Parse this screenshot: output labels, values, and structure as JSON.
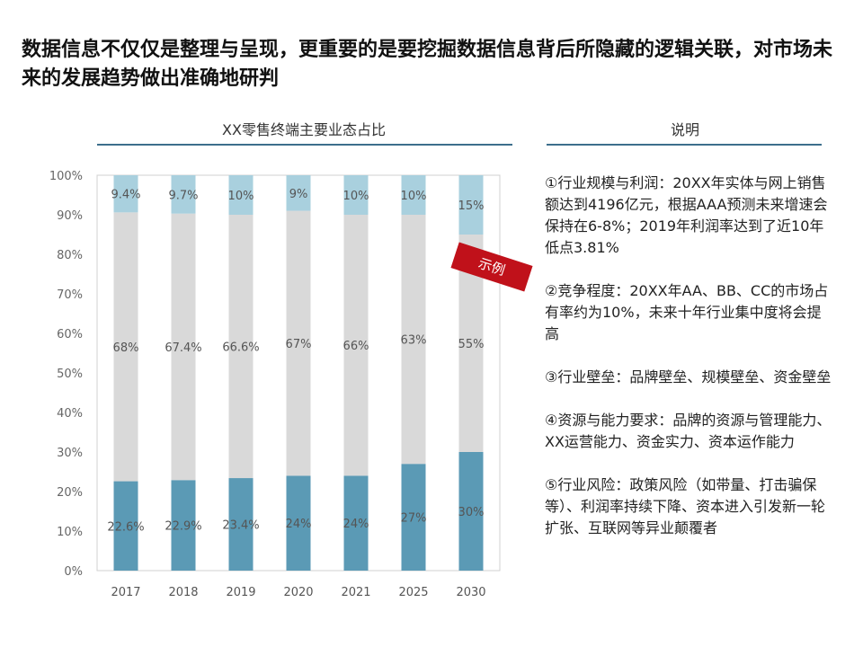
{
  "headline": "数据信息不仅仅是整理与呈现，更重要的是要挖掘数据信息背后所隐藏的逻辑关联，对市场未来的发展趋势做出准确地研判",
  "tag_label": "示例",
  "notes": {
    "title": "说明",
    "items": [
      "①行业规模与利润：20XX年实体与网上销售额达到4196亿元，根据AAA预测未来增速会保持在6-8%；2019年利润率达到了近10年低点3.81%",
      "②竞争程度：20XX年AA、BB、CC的市场占有率约为10%，未来十年行业集中度将会提高",
      "③行业壁垒：品牌壁垒、规模壁垒、资金壁垒",
      "④资源与能力要求：品牌的资源与管理能力、XX运营能力、资金实力、资本运作能力",
      "⑤行业风险：政策风险（如带量、打击骗保等）、利润率持续下降、资本进入引发新一轮扩张、互联网等异业颠覆者"
    ]
  },
  "chart_data": {
    "type": "bar",
    "stacked": true,
    "title": "XX零售终端主要业态占比",
    "categories": [
      "2017",
      "2018",
      "2019",
      "2020",
      "2021",
      "2025",
      "2030"
    ],
    "series": [
      {
        "values": [
          22.6,
          22.9,
          23.4,
          24,
          24,
          27,
          30
        ],
        "labels": [
          "22.6%",
          "22.9%",
          "23.4%",
          "24%",
          "24%",
          "27%",
          "30%"
        ],
        "color": "#5b9ab5"
      },
      {
        "values": [
          68,
          67.4,
          66.6,
          67,
          66,
          63,
          55
        ],
        "labels": [
          "68%",
          "67.4%",
          "66.6%",
          "67%",
          "66%",
          "63%",
          "55%"
        ],
        "color": "#d9d9d9"
      },
      {
        "values": [
          9.4,
          9.7,
          10,
          9,
          10,
          10,
          15
        ],
        "labels": [
          "9.4%",
          "9.7%",
          "10%",
          "9%",
          "10%",
          "10%",
          "15%"
        ],
        "color": "#a9d0de"
      }
    ],
    "ylim": [
      0,
      100
    ],
    "yticks": [
      "0%",
      "10%",
      "20%",
      "30%",
      "40%",
      "50%",
      "60%",
      "70%",
      "80%",
      "90%",
      "100%"
    ],
    "grid": false
  }
}
